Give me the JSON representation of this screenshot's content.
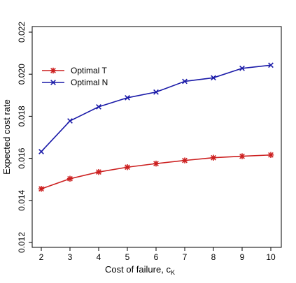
{
  "chart_data": {
    "type": "line",
    "x": [
      2,
      3,
      4,
      5,
      6,
      7,
      8,
      9,
      10
    ],
    "xlabel": "Cost of failure, c",
    "xlabel_sub": "K",
    "ylabel": "Expected cost rate",
    "xlim": [
      2,
      10
    ],
    "ylim": [
      0.012,
      0.022
    ],
    "x_ticks": [
      2,
      3,
      4,
      5,
      6,
      7,
      8,
      9,
      10
    ],
    "y_ticks": [
      "0.012",
      "0.014",
      "0.016",
      "0.018",
      "0.020",
      "0.022"
    ],
    "grid": false,
    "legend_position": "top-left",
    "series": [
      {
        "name": "Optimal T",
        "color": "#cc1f1f",
        "marker": "asterisk",
        "values": [
          0.01455,
          0.01503,
          0.01535,
          0.01558,
          0.01575,
          0.0159,
          0.01603,
          0.0161,
          0.01616
        ]
      },
      {
        "name": "Optimal N",
        "color": "#1a1aa8",
        "marker": "cross",
        "values": [
          0.01632,
          0.01778,
          0.01845,
          0.01888,
          0.01915,
          0.01966,
          0.01983,
          0.02028,
          0.02043
        ]
      }
    ]
  }
}
